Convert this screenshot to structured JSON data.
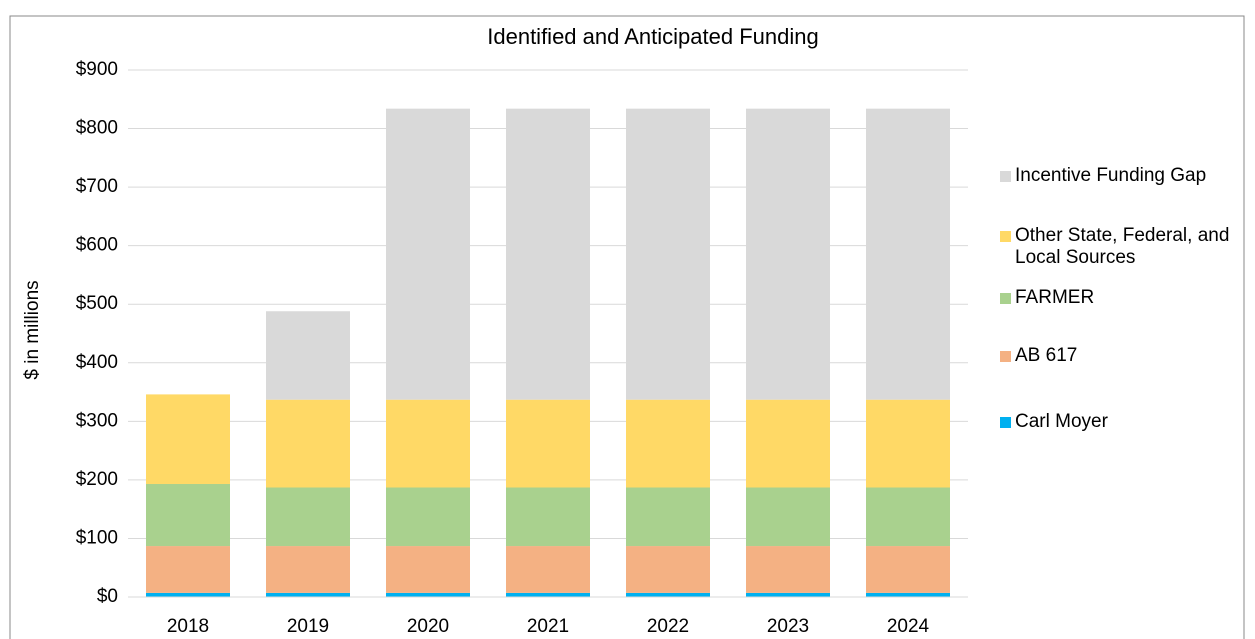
{
  "chart_data": {
    "type": "stacked_bar",
    "title": "Identified and Anticipated Funding",
    "y_label": "$ in millions",
    "categories": [
      "2018",
      "2019",
      "2020",
      "2021",
      "2022",
      "2023",
      "2024"
    ],
    "series": [
      {
        "name": "Carl Moyer",
        "color": "#00b0f0",
        "values": [
          7,
          7,
          7,
          7,
          7,
          7,
          7
        ]
      },
      {
        "name": "AB 617",
        "color": "#f4b183",
        "values": [
          80,
          80,
          80,
          80,
          80,
          80,
          80
        ]
      },
      {
        "name": "FARMER",
        "color": "#a9d18e",
        "values": [
          106,
          100,
          100,
          100,
          100,
          100,
          100
        ]
      },
      {
        "name": "Other State, Federal, and Local Sources",
        "color": "#ffd966",
        "values": [
          153,
          150,
          150,
          150,
          150,
          150,
          150
        ]
      },
      {
        "name": "Incentive Funding Gap",
        "color": "#d9d9d9",
        "values": [
          0,
          151,
          497,
          497,
          497,
          497,
          497
        ]
      }
    ],
    "ylim": [
      0,
      900
    ],
    "yticks": [
      {
        "value": 0,
        "label": "$0"
      },
      {
        "value": 100,
        "label": "$100"
      },
      {
        "value": 200,
        "label": "$200"
      },
      {
        "value": 300,
        "label": "$300"
      },
      {
        "value": 400,
        "label": "$400"
      },
      {
        "value": 500,
        "label": "$500"
      },
      {
        "value": 600,
        "label": "$600"
      },
      {
        "value": 700,
        "label": "$700"
      },
      {
        "value": 800,
        "label": "$800"
      },
      {
        "value": 900,
        "label": "$900"
      }
    ],
    "grid": true,
    "legend": "right"
  }
}
